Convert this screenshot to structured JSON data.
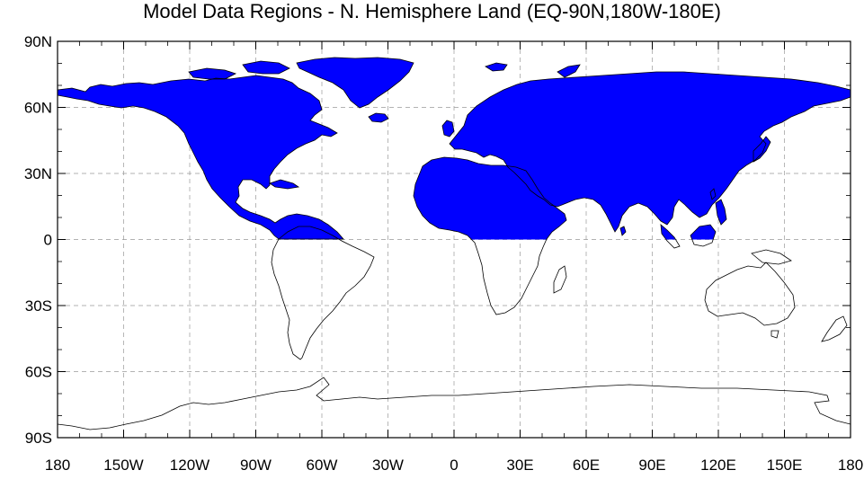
{
  "title": "Model Data Regions - N. Hemisphere Land (EQ-90N,180W-180E)",
  "colors": {
    "region_fill": "#0000ff",
    "coastline": "#000000",
    "grid": "#999999",
    "background": "#ffffff"
  },
  "map": {
    "projection": "cylindrical-equidistant",
    "lon_range": [
      -180,
      180
    ],
    "lat_range": [
      -90,
      90
    ],
    "highlighted_region": {
      "lat_range": [
        0,
        90
      ],
      "lon_range": [
        -180,
        180
      ],
      "surface": "land"
    },
    "gridlines": "dashed",
    "x_ticks": [
      {
        "value": -180,
        "label": "180"
      },
      {
        "value": -150,
        "label": "150W"
      },
      {
        "value": -120,
        "label": "120W"
      },
      {
        "value": -90,
        "label": "90W"
      },
      {
        "value": -60,
        "label": "60W"
      },
      {
        "value": -30,
        "label": "30W"
      },
      {
        "value": 0,
        "label": "0"
      },
      {
        "value": 30,
        "label": "30E"
      },
      {
        "value": 60,
        "label": "60E"
      },
      {
        "value": 90,
        "label": "90E"
      },
      {
        "value": 120,
        "label": "120E"
      },
      {
        "value": 150,
        "label": "150E"
      },
      {
        "value": 180,
        "label": "180"
      }
    ],
    "y_ticks": [
      {
        "value": 90,
        "label": "90N"
      },
      {
        "value": 60,
        "label": "60N"
      },
      {
        "value": 30,
        "label": "30N"
      },
      {
        "value": 0,
        "label": "0"
      },
      {
        "value": -30,
        "label": "30S"
      },
      {
        "value": -60,
        "label": "60S"
      },
      {
        "value": -90,
        "label": "90S"
      }
    ]
  }
}
